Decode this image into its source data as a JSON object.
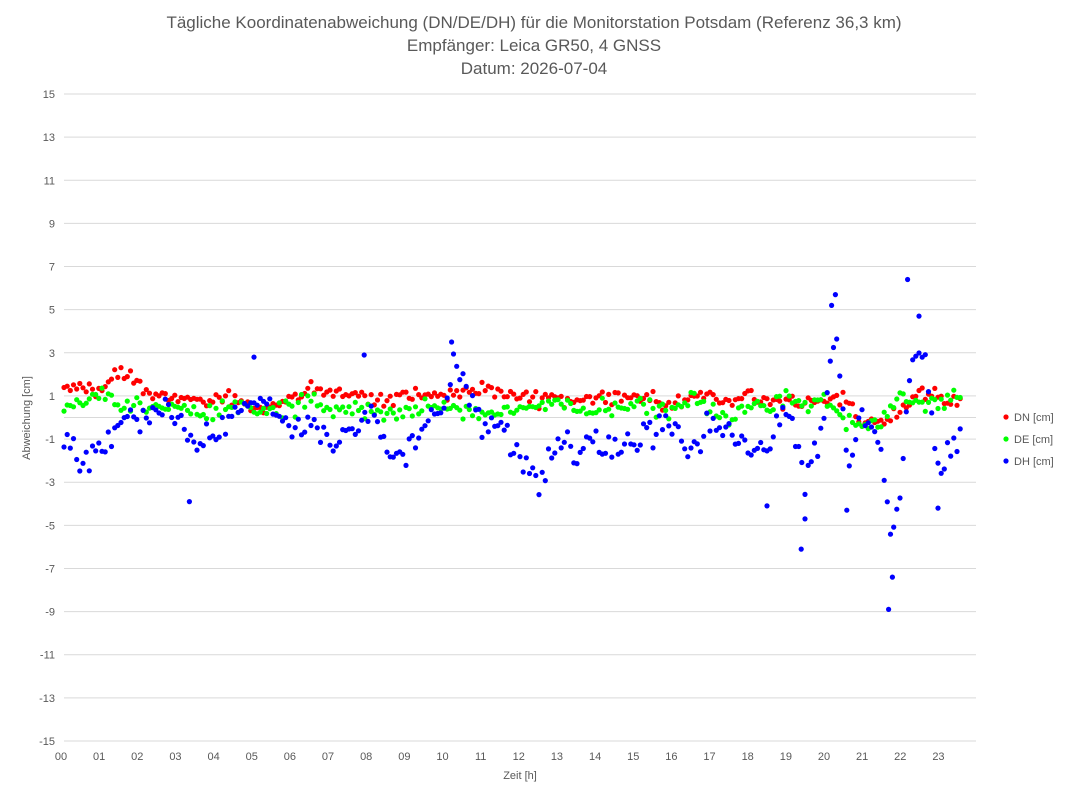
{
  "chart_data": {
    "type": "scatter",
    "title": "Tägliche Koordinatenabweichung (DN/DE/DH) für die Monitorstation Potsdam (Referenz 36,3 km)",
    "subtitle": "Empfänger: Leica GR50, 4 GNSS",
    "date_line": "Datum: 2026-07-04",
    "xlabel": "Zeit [h]",
    "ylabel": "Abweichung [cm]",
    "xlim": [
      0,
      24
    ],
    "ylim": [
      -15,
      15
    ],
    "x_ticks": [
      "00",
      "01",
      "02",
      "03",
      "04",
      "05",
      "06",
      "07",
      "08",
      "09",
      "10",
      "11",
      "12",
      "13",
      "14",
      "15",
      "16",
      "17",
      "18",
      "19",
      "20",
      "21",
      "22",
      "23"
    ],
    "y_ticks": [
      "15",
      "13",
      "11",
      "9",
      "7",
      "5",
      "3",
      "1",
      "-1",
      "-3",
      "-5",
      "-7",
      "-9",
      "-11",
      "-13",
      "-15"
    ],
    "grid": "horizontal",
    "legend_position": "right",
    "series": [
      {
        "name": "DN [cm]",
        "color": "#ff0000",
        "anchors": [
          [
            0,
            1.5
          ],
          [
            1,
            1.2
          ],
          [
            1.5,
            2.3
          ],
          [
            2,
            1.4
          ],
          [
            2.5,
            0.8
          ],
          [
            3,
            0.9
          ],
          [
            3.5,
            0.7
          ],
          [
            4,
            0.7
          ],
          [
            4.5,
            0.9
          ],
          [
            5,
            0.5
          ],
          [
            5.5,
            0.6
          ],
          [
            6,
            0.8
          ],
          [
            6.5,
            1.3
          ],
          [
            7,
            1.2
          ],
          [
            7.5,
            1.0
          ],
          [
            8,
            0.9
          ],
          [
            8.5,
            0.8
          ],
          [
            9,
            1.2
          ],
          [
            9.5,
            0.9
          ],
          [
            10,
            1.1
          ],
          [
            10.5,
            1.3
          ],
          [
            11,
            1.2
          ],
          [
            11.5,
            1.1
          ],
          [
            12,
            1.0
          ],
          [
            12.5,
            0.9
          ],
          [
            13,
            0.9
          ],
          [
            13.5,
            0.8
          ],
          [
            14,
            0.8
          ],
          [
            14.5,
            0.9
          ],
          [
            15,
            1.1
          ],
          [
            15.5,
            0.8
          ],
          [
            16,
            0.6
          ],
          [
            16.5,
            1.0
          ],
          [
            17,
            1.0
          ],
          [
            17.5,
            0.7
          ],
          [
            18,
            1.0
          ],
          [
            18.5,
            0.8
          ],
          [
            19,
            0.6
          ],
          [
            19.5,
            0.8
          ],
          [
            20,
            0.8
          ],
          [
            20.5,
            0.9
          ],
          [
            21,
            -0.3
          ],
          [
            21.5,
            -0.1
          ],
          [
            22,
            0.3
          ],
          [
            22.5,
            1.2
          ],
          [
            23,
            1.0
          ],
          [
            23.6,
            0.6
          ]
        ],
        "noise": 0.3
      },
      {
        "name": "DE [cm]",
        "color": "#00ff00",
        "anchors": [
          [
            0,
            0.5
          ],
          [
            0.5,
            0.9
          ],
          [
            1,
            1.0
          ],
          [
            1.5,
            0.5
          ],
          [
            2,
            0.6
          ],
          [
            2.5,
            0.5
          ],
          [
            3,
            0.5
          ],
          [
            3.5,
            0.3
          ],
          [
            4,
            0.3
          ],
          [
            4.5,
            0.6
          ],
          [
            5,
            0.2
          ],
          [
            5.5,
            0.3
          ],
          [
            6,
            0.5
          ],
          [
            6.5,
            0.9
          ],
          [
            7,
            0.3
          ],
          [
            7.5,
            0.4
          ],
          [
            8,
            0.3
          ],
          [
            8.5,
            0.2
          ],
          [
            9,
            0.2
          ],
          [
            9.5,
            0.6
          ],
          [
            10,
            0.5
          ],
          [
            10.5,
            0.3
          ],
          [
            11,
            0.2
          ],
          [
            11.5,
            0.1
          ],
          [
            12,
            0.3
          ],
          [
            12.5,
            0.5
          ],
          [
            13,
            0.5
          ],
          [
            13.5,
            0.4
          ],
          [
            14,
            0.4
          ],
          [
            14.5,
            0.3
          ],
          [
            15,
            0.6
          ],
          [
            15.5,
            0.4
          ],
          [
            16,
            0.3
          ],
          [
            16.5,
            0.9
          ],
          [
            17,
            0.5
          ],
          [
            17.5,
            -0.2
          ],
          [
            18,
            0.5
          ],
          [
            18.5,
            0.4
          ],
          [
            19,
            1.0
          ],
          [
            19.5,
            0.5
          ],
          [
            20,
            0.8
          ],
          [
            20.5,
            0.0
          ],
          [
            21,
            -0.4
          ],
          [
            21.5,
            -0.3
          ],
          [
            22,
            1.0
          ],
          [
            22.5,
            0.6
          ],
          [
            23,
            0.5
          ],
          [
            23.6,
            1.2
          ]
        ],
        "noise": 0.35
      },
      {
        "name": "DH [cm]",
        "color": "#0000ff",
        "anchors": [
          [
            0,
            -1.0
          ],
          [
            0.5,
            -2.0
          ],
          [
            1,
            -1.6
          ],
          [
            1.5,
            -0.3
          ],
          [
            2,
            -0.4
          ],
          [
            2.5,
            0.3
          ],
          [
            3,
            0.2
          ],
          [
            3.5,
            -1.2
          ],
          [
            4,
            -0.8
          ],
          [
            4.5,
            0.1
          ],
          [
            5,
            0.6
          ],
          [
            5.5,
            0.5
          ],
          [
            6,
            -0.6
          ],
          [
            6.5,
            -0.2
          ],
          [
            7,
            -1.4
          ],
          [
            7.5,
            -0.9
          ],
          [
            8,
            0.4
          ],
          [
            8.5,
            -1.2
          ],
          [
            9,
            -1.6
          ],
          [
            9.5,
            -0.6
          ],
          [
            10,
            0.4
          ],
          [
            10.3,
            2.5
          ],
          [
            10.7,
            1.0
          ],
          [
            11,
            -0.3
          ],
          [
            11.5,
            -0.4
          ],
          [
            12,
            -2.0
          ],
          [
            12.5,
            -3.0
          ],
          [
            13,
            -1.0
          ],
          [
            13.5,
            -1.5
          ],
          [
            14,
            -1.0
          ],
          [
            14.5,
            -1.6
          ],
          [
            15,
            -1.3
          ],
          [
            15.5,
            -0.9
          ],
          [
            16,
            0.0
          ],
          [
            16.5,
            -1.6
          ],
          [
            17,
            -0.3
          ],
          [
            17.5,
            -0.7
          ],
          [
            18,
            -1.3
          ],
          [
            18.5,
            -1.8
          ],
          [
            19,
            1.0
          ],
          [
            19.5,
            -3.0
          ],
          [
            20,
            0.0
          ],
          [
            20.3,
            4.0
          ],
          [
            20.7,
            -2.5
          ],
          [
            21,
            0.5
          ],
          [
            21.5,
            -1.5
          ],
          [
            21.8,
            -6.0
          ],
          [
            22,
            -3.0
          ],
          [
            22.3,
            2.5
          ],
          [
            22.6,
            3.5
          ],
          [
            23,
            -2.5
          ],
          [
            23.6,
            -1.0
          ]
        ],
        "noise": 0.55,
        "outliers": [
          [
            3.3,
            -3.9
          ],
          [
            5.0,
            2.8
          ],
          [
            7.9,
            2.9
          ],
          [
            10.2,
            3.5
          ],
          [
            18.5,
            -4.1
          ],
          [
            19.4,
            -6.1
          ],
          [
            19.5,
            -4.7
          ],
          [
            20.2,
            5.2
          ],
          [
            20.3,
            5.7
          ],
          [
            20.6,
            -4.3
          ],
          [
            21.7,
            -8.9
          ],
          [
            21.8,
            -7.4
          ],
          [
            22.2,
            6.4
          ],
          [
            22.5,
            4.7
          ],
          [
            23.0,
            -4.2
          ]
        ]
      }
    ]
  }
}
